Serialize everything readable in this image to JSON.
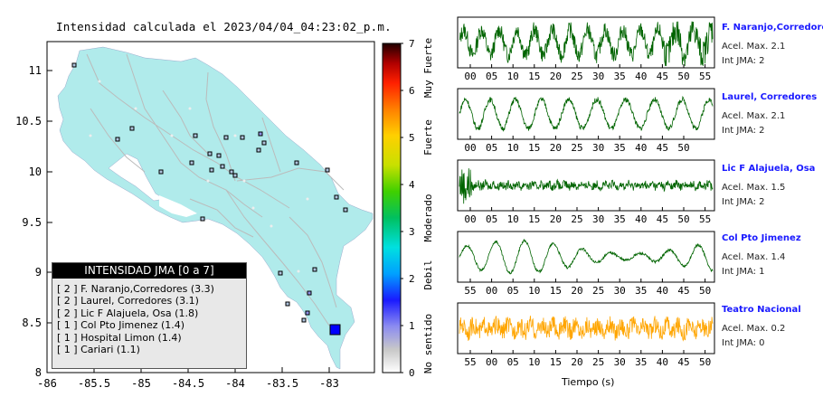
{
  "map": {
    "title": "Intensidad calculada el 2023/04/04_04:23:02_p.m.",
    "x_ticks": [
      "-86",
      "-85.5",
      "-85",
      "-84.5",
      "-84",
      "-83.5",
      "-83"
    ],
    "y_ticks": [
      "11",
      "10.5",
      "10",
      "9.5",
      "9",
      "8.5",
      "8"
    ],
    "land_color": "#b0ebeb",
    "water_color": "#ffffff"
  },
  "legend": {
    "title": "INTENSIDAD JMA [0 a 7]",
    "items": [
      "[ 2 ]  F. Naranjo,Corredores (3.3)",
      "[ 2 ]  Laurel, Corredores (3.1)",
      "[ 2 ]  Lic F Alajuela, Osa (1.8)",
      "[ 1 ]  Col Pto Jimenez (1.4)",
      "[ 1 ]  Hospital Limon (1.4)",
      "[ 1 ]  Cariari (1.1)"
    ]
  },
  "colorbar": {
    "ticks": [
      "7",
      "6",
      "5",
      "4",
      "3",
      "2",
      "1",
      "0"
    ],
    "labels": [
      "Muy Fuerte",
      "Fuerte",
      "Moderado",
      "Debil",
      "No sentido"
    ]
  },
  "stations": [
    {
      "name": "F. Naranjo,Corredores",
      "acel": "Acel. Max. 2.1",
      "int": "Int JMA: 2",
      "color": "#006400",
      "ticks": [
        "00",
        "05",
        "10",
        "15",
        "20",
        "25",
        "30",
        "35",
        "40",
        "45",
        "50",
        "55"
      ]
    },
    {
      "name": "Laurel, Corredores",
      "acel": "Acel. Max. 2.1",
      "int": "Int JMA: 2",
      "color": "#006400",
      "ticks": [
        "00",
        "05",
        "10",
        "15",
        "20",
        "25",
        "30",
        "35",
        "40",
        "45",
        "50"
      ]
    },
    {
      "name": "Lic F Alajuela, Osa",
      "acel": "Acel. Max. 1.5",
      "int": "Int JMA: 2",
      "color": "#006400",
      "ticks": [
        "00",
        "05",
        "10",
        "15",
        "20",
        "25",
        "30",
        "35",
        "40",
        "45",
        "50",
        "55"
      ]
    },
    {
      "name": "Col Pto Jimenez",
      "acel": "Acel. Max. 1.4",
      "int": "Int JMA: 1",
      "color": "#006400",
      "ticks": [
        "55",
        "00",
        "05",
        "10",
        "15",
        "20",
        "25",
        "30",
        "35",
        "40",
        "45",
        "50"
      ]
    },
    {
      "name": "Teatro Nacional",
      "acel": "Acel. Max. 0.2",
      "int": "Int JMA: 0",
      "color": "#ffa500",
      "ticks": [
        "55",
        "00",
        "05",
        "10",
        "15",
        "20",
        "25",
        "30",
        "35",
        "40",
        "45",
        "50"
      ]
    }
  ],
  "time_axis_label": "Tiempo (s)"
}
